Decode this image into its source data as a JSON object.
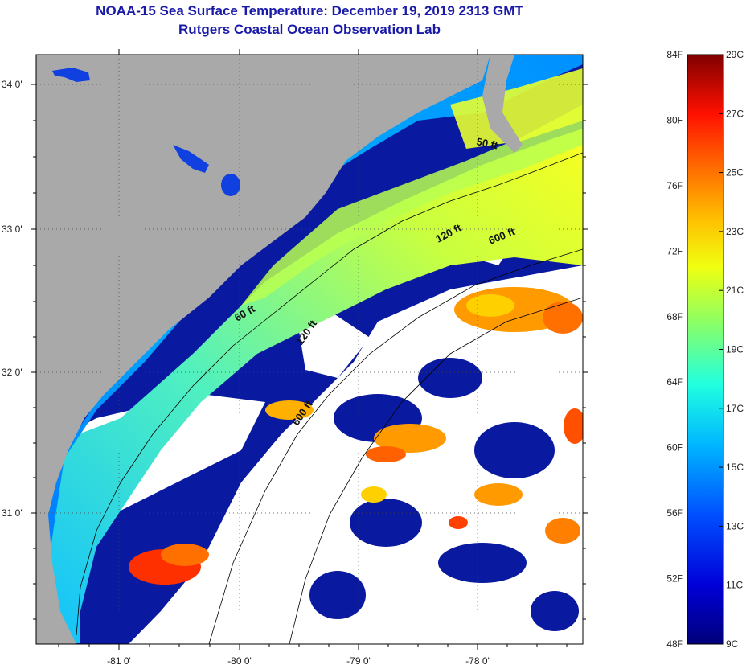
{
  "title_line1": "NOAA-15 Sea Surface Temperature:  December 19, 2019 2313 GMT",
  "title_line2": "Rutgers Coastal Ocean Observation Lab",
  "latitude_ticks": [
    "34 0'",
    "33 0'",
    "32 0'",
    "31 0'"
  ],
  "longitude_ticks": [
    "-81 0'",
    "-80 0'",
    "-79 0'",
    "-78 0'"
  ],
  "contour_labels": [
    "50 ft",
    "120 ft",
    "600 ft",
    "60 ft",
    "120 ft",
    "600 ft"
  ],
  "colorbar": {
    "fahrenheit_labels": [
      "84F",
      "80F",
      "76F",
      "72F",
      "68F",
      "64F",
      "60F",
      "56F",
      "52F",
      "48F"
    ],
    "celsius_labels": [
      "29C",
      "27C",
      "25C",
      "23C",
      "21C",
      "19C",
      "17C",
      "15C",
      "13C",
      "11C",
      "9C"
    ]
  },
  "colors": {
    "land": "#a9a9a9",
    "cloud_mask": "#ffffff",
    "title": "#1a1aa8"
  }
}
